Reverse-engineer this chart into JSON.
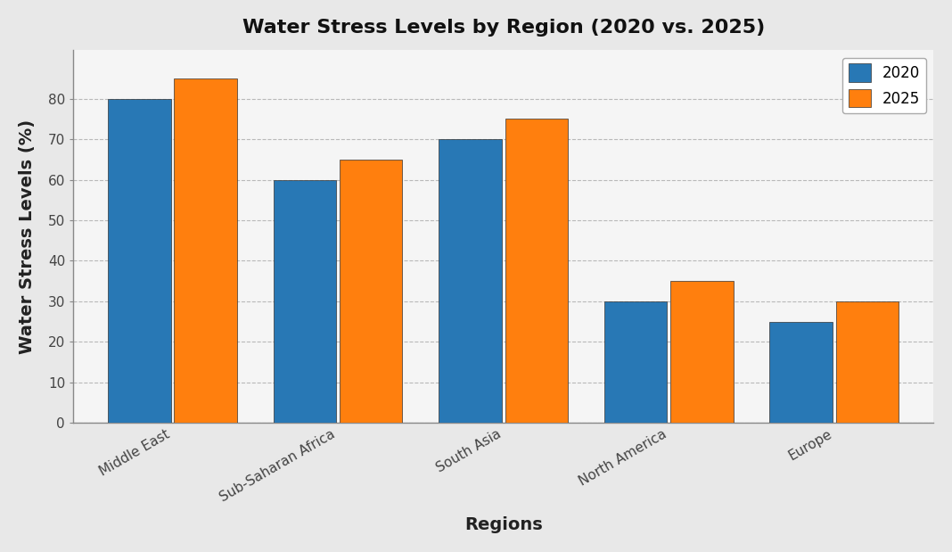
{
  "title": "Water Stress Levels by Region (2020 vs. 2025)",
  "regions": [
    "Middle East",
    "Sub-Saharan Africa",
    "South Asia",
    "North America",
    "Europe"
  ],
  "values_2020": [
    80,
    60,
    70,
    30,
    25
  ],
  "values_2025": [
    85,
    65,
    75,
    35,
    30
  ],
  "color_2020": "#2878b5",
  "color_2025": "#ff7f0e",
  "xlabel": "Regions",
  "ylabel": "Water Stress Levels (%)",
  "ylim": [
    0,
    92
  ],
  "yticks": [
    0,
    10,
    20,
    30,
    40,
    50,
    60,
    70,
    80
  ],
  "legend_labels": [
    "2020",
    "2025"
  ],
  "bar_width": 0.38,
  "bar_gap": 0.02,
  "title_fontsize": 16,
  "axis_label_fontsize": 14,
  "tick_fontsize": 11,
  "legend_fontsize": 12,
  "background_color": "#e8e8e8",
  "plot_bg_color": "#f5f5f5",
  "grid_color": "#aaaaaa",
  "grid_linestyle": "--",
  "grid_alpha": 0.8,
  "bar_edge_color": "#333333",
  "bar_edge_width": 0.5
}
